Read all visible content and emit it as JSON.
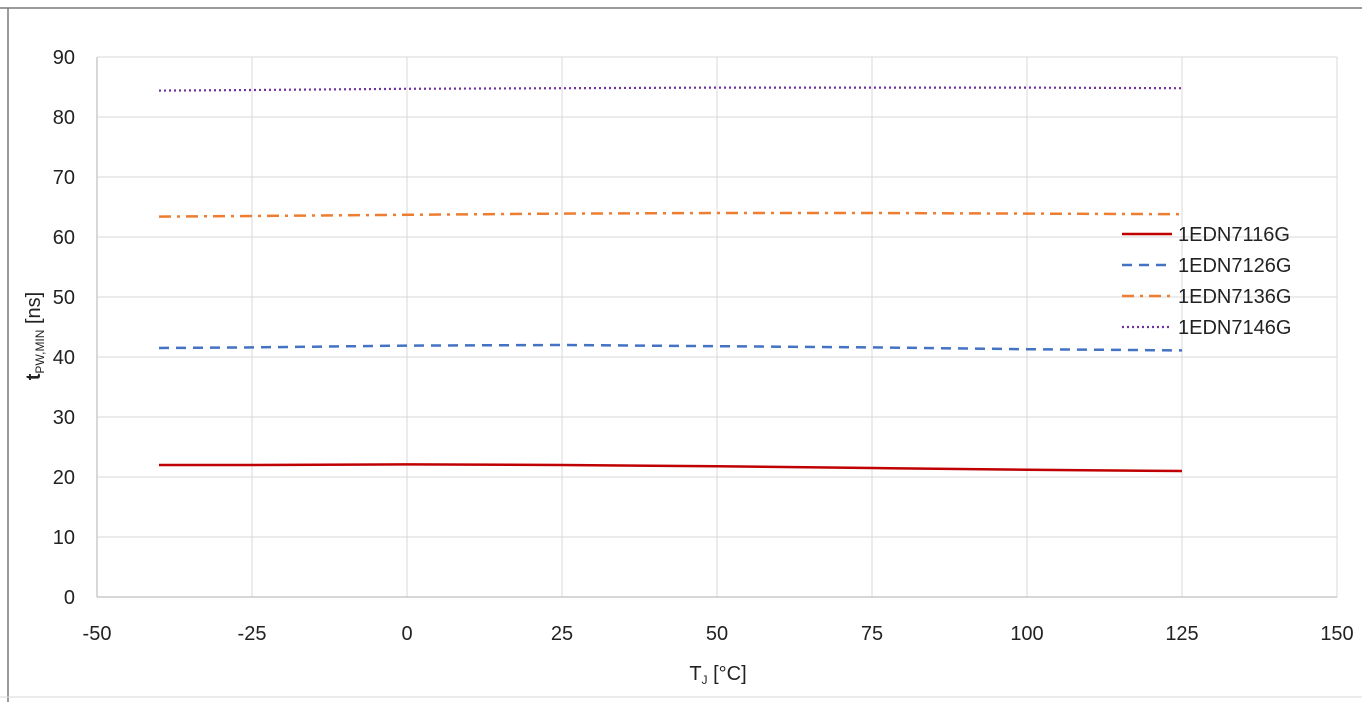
{
  "chart_data": {
    "type": "line",
    "title": "",
    "xlabel": {
      "main": "T",
      "sub": "J",
      "suffix": " [°C]"
    },
    "ylabel": {
      "main": "t",
      "sub": "PW,MIN",
      "suffix": " [ns]"
    },
    "xlim": [
      -50,
      150
    ],
    "ylim": [
      0,
      90
    ],
    "x_ticks": [
      -50,
      -25,
      0,
      25,
      50,
      75,
      100,
      125,
      150
    ],
    "y_ticks": [
      0,
      10,
      20,
      30,
      40,
      50,
      60,
      70,
      80,
      90
    ],
    "grid": true,
    "legend_position": "right",
    "x": [
      -40,
      -25,
      0,
      25,
      50,
      75,
      100,
      125
    ],
    "series": [
      {
        "name": "1EDN7116G",
        "color": "#C00000",
        "style": "solid",
        "values": [
          22.0,
          22.0,
          22.1,
          22.0,
          21.8,
          21.5,
          21.2,
          21.0
        ]
      },
      {
        "name": "1EDN7126G",
        "color": "#4472C4",
        "style": "dash",
        "values": [
          41.5,
          41.6,
          41.9,
          42.0,
          41.8,
          41.6,
          41.3,
          41.1
        ]
      },
      {
        "name": "1EDN7136G",
        "color": "#ED7D31",
        "style": "dashdot",
        "values": [
          63.4,
          63.5,
          63.7,
          63.9,
          64.0,
          64.0,
          63.9,
          63.8
        ]
      },
      {
        "name": "1EDN7146G",
        "color": "#7030A0",
        "style": "dot",
        "values": [
          84.4,
          84.5,
          84.7,
          84.8,
          84.9,
          84.9,
          84.9,
          84.8
        ]
      }
    ]
  }
}
